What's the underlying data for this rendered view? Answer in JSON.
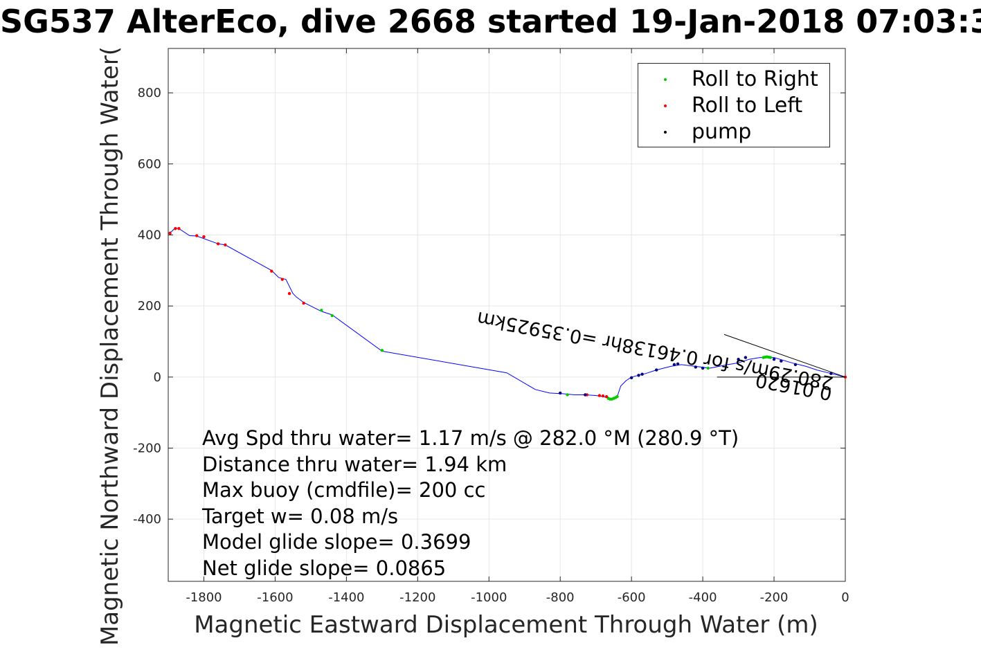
{
  "title": "SG537 AlterEco, dive 2668 started 19-Jan-2018 07:03:3",
  "chart_data": {
    "type": "scatter",
    "xlabel": "Magnetic Eastward Displacement Through Water (m)",
    "ylabel": "Magnetic Northward Displacement Through Water(",
    "xlim": [
      -1900,
      0
    ],
    "ylim": [
      -575,
      925
    ],
    "xticks": [
      -1800,
      -1600,
      -1400,
      -1200,
      -1000,
      -800,
      -600,
      -400,
      -200,
      0
    ],
    "yticks": [
      -400,
      -200,
      0,
      200,
      400,
      600,
      800
    ],
    "grid": true,
    "legend_position": "top-right",
    "colors": {
      "track": "#0000ff",
      "roll_right": "#00cc00",
      "roll_left": "#ff0000",
      "pump": "#000080",
      "current_line": "#000000",
      "grid": "#e6e6e6",
      "axes": "#262626"
    },
    "series": [
      {
        "name": "track",
        "x": [
          0,
          -40,
          -80,
          -110,
          -150,
          -200,
          -240,
          -270,
          -300,
          -330,
          -380,
          -420,
          -460,
          -490,
          -530,
          -560,
          -580,
          -600,
          -615,
          -630,
          -635,
          -640,
          -650,
          -660,
          -680,
          -700,
          -730,
          -760,
          -790,
          -830,
          -870,
          -950,
          -1300,
          -1440,
          -1470,
          -1510,
          -1520,
          -1540,
          -1550,
          -1570,
          -1590,
          -1610,
          -1740,
          -1760,
          -1820,
          -1840,
          -1870,
          -1880,
          -1890,
          -1900
        ],
        "y": [
          0,
          10,
          20,
          30,
          40,
          55,
          55,
          50,
          40,
          35,
          25,
          30,
          35,
          30,
          20,
          10,
          5,
          0,
          -10,
          -25,
          -40,
          -55,
          -62,
          -60,
          -55,
          -52,
          -50,
          -50,
          -47,
          -45,
          -35,
          12,
          73,
          175,
          185,
          205,
          210,
          225,
          235,
          275,
          280,
          300,
          372,
          375,
          397,
          398,
          418,
          420,
          410,
          405
        ]
      },
      {
        "name": "Roll to Right",
        "x": [
          -210,
          -215,
          -220,
          -225,
          -230,
          -385,
          -400,
          -640,
          -645,
          -650,
          -655,
          -660,
          -665,
          -780,
          -1300,
          -1440,
          -1470
        ],
        "y": [
          55,
          56,
          57,
          56,
          55,
          25,
          25,
          -55,
          -58,
          -60,
          -62,
          -62,
          -60,
          -50,
          75,
          173,
          188
        ]
      },
      {
        "name": "Roll to Left",
        "x": [
          0,
          -670,
          -680,
          -690,
          -725,
          -1520,
          -1560,
          -1580,
          -1610,
          -1740,
          -1760,
          -1800,
          -1820,
          -1870,
          -1880,
          -1895
        ],
        "y": [
          0,
          -55,
          -53,
          -52,
          -50,
          208,
          235,
          275,
          298,
          372,
          375,
          395,
          398,
          418,
          418,
          405
        ]
      },
      {
        "name": "pump",
        "x": [
          -40,
          -140,
          -180,
          -200,
          -280,
          -300,
          -400,
          -420,
          -470,
          -480,
          -530,
          -570,
          -580,
          -600,
          -730,
          -800
        ],
        "y": [
          10,
          35,
          45,
          50,
          55,
          50,
          25,
          28,
          37,
          35,
          20,
          8,
          5,
          -2,
          -50,
          -45
        ]
      }
    ],
    "current_arrow": {
      "label": "280.29m/s for 0.46138hr =0.35925km",
      "label_overlay": "0.01620",
      "line_from": [
        0,
        0
      ],
      "line_to": [
        -340,
        120
      ]
    },
    "stats": [
      "Avg Spd thru water=  1.17 m/s @ 282.0 °M (280.9 °T)",
      "Distance thru water=  1.94 km",
      "Max buoy (cmdfile)= 200 cc",
      "Target w= 0.08 m/s",
      "Model glide slope= 0.3699",
      "Net glide slope= 0.0865"
    ]
  }
}
